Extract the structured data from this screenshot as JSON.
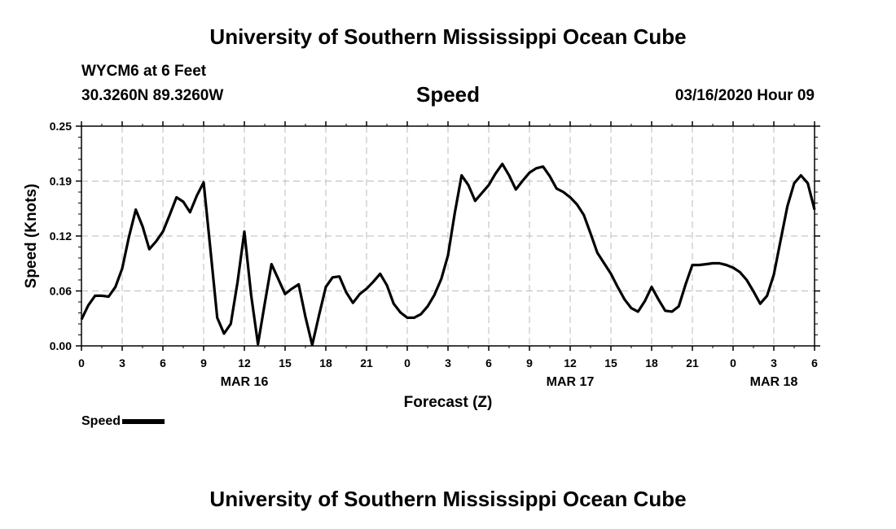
{
  "page": {
    "top_title": "University of Southern Mississippi Ocean Cube",
    "bottom_title": "University of Southern Mississippi Ocean Cube",
    "station": "WYCM6 at 6 Feet",
    "coordinates": "30.3260N 89.3260W",
    "datetime": "03/16/2020 Hour 09"
  },
  "chart_data": {
    "type": "line",
    "title": "Speed",
    "xlabel": "Forecast (Z)",
    "ylabel": "Speed (Knots)",
    "ylim": [
      0,
      0.25
    ],
    "xlim": [
      0,
      54
    ],
    "grid": true,
    "y_ticks": [
      "0.00",
      "0.06",
      "0.12",
      "0.19",
      "0.25"
    ],
    "y_tick_values": [
      0,
      0.0625,
      0.125,
      0.1875,
      0.25
    ],
    "x_ticks": [
      "0",
      "3",
      "6",
      "9",
      "12",
      "15",
      "18",
      "21",
      "0",
      "3",
      "6",
      "9",
      "12",
      "15",
      "18",
      "21",
      "0",
      "3",
      "6"
    ],
    "date_labels": [
      {
        "label": "MAR 16",
        "x": 12
      },
      {
        "label": "MAR 17",
        "x": 36
      },
      {
        "label": "MAR 18",
        "x": 51
      }
    ],
    "legend": {
      "label": "Speed",
      "position": "bottom-left"
    },
    "series": [
      {
        "name": "Speed",
        "x": [
          0,
          0.5,
          1,
          1.5,
          2,
          2.5,
          3,
          3.5,
          4,
          4.5,
          5,
          5.5,
          6,
          6.5,
          7,
          7.5,
          8,
          8.5,
          9,
          9.5,
          10,
          10.5,
          11,
          11.5,
          12,
          12.5,
          13,
          13.5,
          14,
          14.5,
          15,
          15.5,
          16,
          16.5,
          17,
          17.5,
          18,
          18.5,
          19,
          19.5,
          20,
          20.5,
          21,
          21.5,
          22,
          22.5,
          23,
          23.5,
          24,
          24.5,
          25,
          25.5,
          26,
          26.5,
          27,
          27.5,
          28,
          28.5,
          29,
          29.5,
          30,
          30.5,
          31,
          31.5,
          32,
          32.5,
          33,
          33.5,
          34,
          34.5,
          35,
          35.5,
          36,
          36.5,
          37,
          37.5,
          38,
          38.5,
          39,
          39.5,
          40,
          40.5,
          41,
          41.5,
          42,
          42.5,
          43,
          43.5,
          44,
          44.5,
          45,
          45.5,
          46,
          46.5,
          47,
          47.5,
          48,
          48.5,
          49,
          49.5,
          50,
          50.5,
          51,
          51.5,
          52,
          52.5,
          53,
          53.5,
          54
        ],
        "values": [
          0.03,
          0.046,
          0.057,
          0.057,
          0.056,
          0.067,
          0.088,
          0.124,
          0.155,
          0.136,
          0.11,
          0.119,
          0.13,
          0.149,
          0.169,
          0.164,
          0.152,
          0.171,
          0.186,
          0.11,
          0.032,
          0.014,
          0.025,
          0.073,
          0.13,
          0.058,
          0.002,
          0.048,
          0.093,
          0.076,
          0.059,
          0.065,
          0.07,
          0.033,
          0.001,
          0.035,
          0.067,
          0.078,
          0.079,
          0.061,
          0.049,
          0.059,
          0.065,
          0.073,
          0.082,
          0.069,
          0.048,
          0.038,
          0.032,
          0.032,
          0.036,
          0.045,
          0.058,
          0.076,
          0.103,
          0.151,
          0.194,
          0.183,
          0.165,
          0.174,
          0.183,
          0.196,
          0.207,
          0.194,
          0.178,
          0.188,
          0.197,
          0.202,
          0.204,
          0.193,
          0.179,
          0.175,
          0.169,
          0.161,
          0.149,
          0.128,
          0.106,
          0.094,
          0.082,
          0.067,
          0.053,
          0.043,
          0.039,
          0.051,
          0.067,
          0.053,
          0.04,
          0.039,
          0.045,
          0.07,
          0.092,
          0.092,
          0.093,
          0.094,
          0.094,
          0.092,
          0.089,
          0.084,
          0.075,
          0.062,
          0.048,
          0.057,
          0.081,
          0.12,
          0.159,
          0.185,
          0.194,
          0.185,
          0.155
        ]
      }
    ]
  }
}
